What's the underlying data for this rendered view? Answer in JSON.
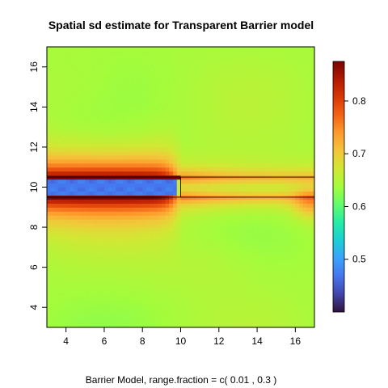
{
  "chart_data": {
    "type": "heatmap",
    "title": "Spatial sd estimate for Transparent Barrier model",
    "xlabel": "Barrier Model, range.fraction = c( 0.01 ,  0.3 )",
    "ylabel": "",
    "xlim": [
      3,
      17
    ],
    "ylim": [
      3,
      17
    ],
    "x_ticks": [
      4,
      6,
      8,
      10,
      12,
      14,
      16
    ],
    "y_ticks": [
      4,
      6,
      8,
      10,
      12,
      14,
      16
    ],
    "colorbar": {
      "range": [
        0.4,
        0.875
      ],
      "ticks": [
        0.5,
        0.6,
        0.7,
        0.8
      ],
      "colormap": [
        "#30123b",
        "#4145ab",
        "#4675ed",
        "#39a2fc",
        "#1bcfd4",
        "#24eca6",
        "#61fc6c",
        "#a4fc3b",
        "#d1e834",
        "#f3c63a",
        "#fe9b2d",
        "#f36315",
        "#d93806",
        "#b11901",
        "#7a0402"
      ]
    },
    "barrier": {
      "x_range": [
        3,
        17
      ],
      "y_range": [
        9.5,
        10.5
      ],
      "solid_x_range": [
        3,
        10
      ]
    },
    "field_summary": {
      "background_sd": 0.64,
      "inside_barrier_sd": 0.47,
      "barrier_edge_sd": 0.87,
      "gap_edge_sd": 0.76
    }
  }
}
